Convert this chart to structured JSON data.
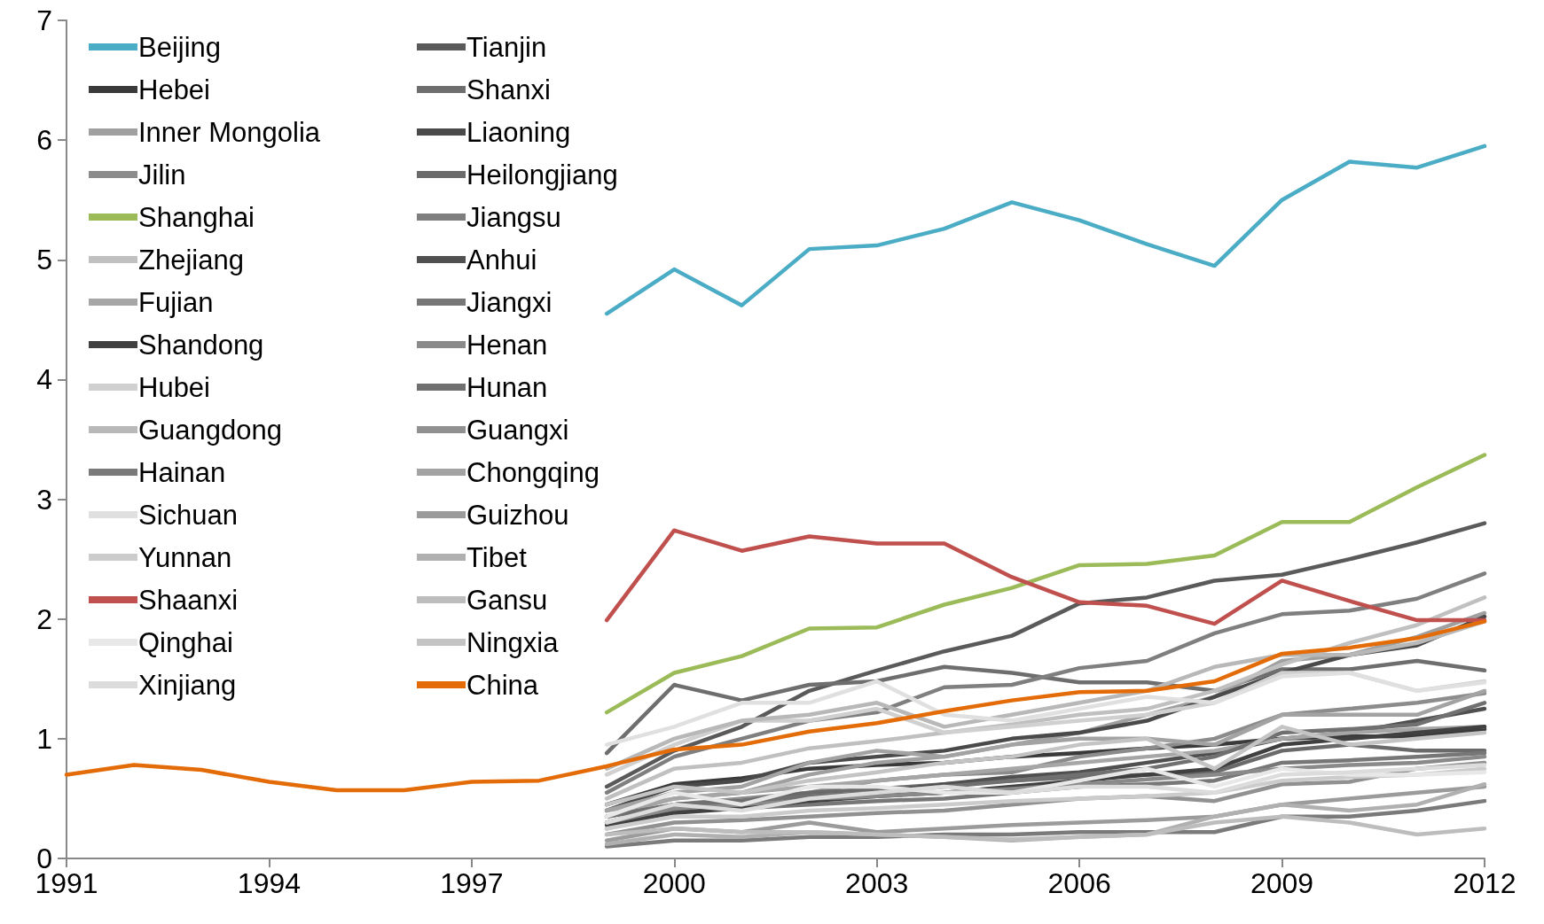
{
  "chart_data": {
    "type": "line",
    "x": [
      1991,
      1992,
      1993,
      1994,
      1995,
      1996,
      1997,
      1998,
      1999,
      2000,
      2001,
      2002,
      2003,
      2004,
      2005,
      2006,
      2007,
      2008,
      2009,
      2010,
      2011,
      2012
    ],
    "xlim": [
      1991,
      2012
    ],
    "xticks": [
      1991,
      1994,
      1997,
      2000,
      2003,
      2006,
      2009,
      2012
    ],
    "ylim": [
      0,
      7
    ],
    "yticks": [
      0,
      1,
      2,
      3,
      4,
      5,
      6,
      7
    ],
    "grid": false,
    "legend": "top left",
    "marker": "none",
    "line_style": "solid",
    "series": [
      {
        "name": "Beijing",
        "color": "#4bacc6",
        "values": [
          null,
          null,
          null,
          null,
          null,
          null,
          null,
          null,
          4.55,
          4.92,
          4.62,
          5.09,
          5.12,
          5.26,
          5.48,
          5.33,
          5.13,
          4.95,
          5.5,
          5.82,
          5.77,
          5.95
        ]
      },
      {
        "name": "Tianjin",
        "color": "#5a5a5a",
        "values": [
          null,
          null,
          null,
          null,
          null,
          null,
          null,
          null,
          0.6,
          0.9,
          1.1,
          1.4,
          1.57,
          1.73,
          1.86,
          2.13,
          2.18,
          2.32,
          2.37,
          2.5,
          2.64,
          2.8
        ]
      },
      {
        "name": "Hebei",
        "color": "#3a3a3a",
        "values": [
          null,
          null,
          null,
          null,
          null,
          null,
          null,
          null,
          0.45,
          0.62,
          0.67,
          0.75,
          0.78,
          0.8,
          0.85,
          0.88,
          0.92,
          0.95,
          1.0,
          1.02,
          1.02,
          1.08
        ]
      },
      {
        "name": "Shanxi",
        "color": "#6e6e6e",
        "values": [
          null,
          null,
          null,
          null,
          null,
          null,
          null,
          null,
          0.88,
          1.45,
          1.32,
          1.45,
          1.48,
          1.6,
          1.55,
          1.47,
          1.47,
          1.4,
          1.58,
          1.58,
          1.65,
          1.57
        ]
      },
      {
        "name": "Inner Mongolia",
        "color": "#a0a0a0",
        "values": [
          null,
          null,
          null,
          null,
          null,
          null,
          null,
          null,
          0.35,
          0.5,
          0.55,
          0.7,
          0.8,
          0.85,
          0.95,
          1.05,
          1.2,
          1.35,
          1.65,
          1.7,
          1.85,
          2.05
        ]
      },
      {
        "name": "Liaoning",
        "color": "#4a4a4a",
        "values": [
          null,
          null,
          null,
          null,
          null,
          null,
          null,
          null,
          0.4,
          0.6,
          0.65,
          0.8,
          0.85,
          0.9,
          1.0,
          1.05,
          1.15,
          1.35,
          1.55,
          1.7,
          1.78,
          2.02
        ]
      },
      {
        "name": "Jilin",
        "color": "#8c8c8c",
        "values": [
          null,
          null,
          null,
          null,
          null,
          null,
          null,
          null,
          0.3,
          0.45,
          0.5,
          0.55,
          0.65,
          0.7,
          0.72,
          0.85,
          0.92,
          1.0,
          1.2,
          1.25,
          1.3,
          1.38
        ]
      },
      {
        "name": "Heilongjiang",
        "color": "#6a6a6a",
        "values": [
          null,
          null,
          null,
          null,
          null,
          null,
          null,
          null,
          0.35,
          0.45,
          0.48,
          0.55,
          0.58,
          0.62,
          0.65,
          0.68,
          0.7,
          0.72,
          0.9,
          0.95,
          0.9,
          0.9
        ]
      },
      {
        "name": "Shanghai",
        "color": "#9bbb59",
        "values": [
          null,
          null,
          null,
          null,
          null,
          null,
          null,
          null,
          1.22,
          1.55,
          1.69,
          1.92,
          1.93,
          2.12,
          2.26,
          2.45,
          2.46,
          2.53,
          2.81,
          2.81,
          3.1,
          3.37
        ]
      },
      {
        "name": "Jiangsu",
        "color": "#7f7f7f",
        "values": [
          null,
          null,
          null,
          null,
          null,
          null,
          null,
          null,
          0.55,
          0.85,
          1.0,
          1.15,
          1.22,
          1.43,
          1.45,
          1.59,
          1.65,
          1.88,
          2.04,
          2.07,
          2.17,
          2.38
        ]
      },
      {
        "name": "Zhejiang",
        "color": "#c0c0c0",
        "values": [
          null,
          null,
          null,
          null,
          null,
          null,
          null,
          null,
          0.5,
          0.75,
          0.8,
          0.92,
          0.98,
          1.05,
          1.12,
          1.2,
          1.25,
          1.4,
          1.62,
          1.8,
          1.95,
          2.18
        ]
      },
      {
        "name": "Anhui",
        "color": "#505050",
        "values": [
          null,
          null,
          null,
          null,
          null,
          null,
          null,
          null,
          0.3,
          0.4,
          0.45,
          0.5,
          0.55,
          0.62,
          0.68,
          0.72,
          0.8,
          0.88,
          1.0,
          1.05,
          1.15,
          1.25
        ]
      },
      {
        "name": "Fujian",
        "color": "#a6a6a6",
        "values": [
          null,
          null,
          null,
          null,
          null,
          null,
          null,
          null,
          0.4,
          0.5,
          0.55,
          0.6,
          0.65,
          0.7,
          0.75,
          0.8,
          0.85,
          0.9,
          1.0,
          1.05,
          1.08,
          1.1
        ]
      },
      {
        "name": "Jiangxi",
        "color": "#777777",
        "values": [
          null,
          null,
          null,
          null,
          null,
          null,
          null,
          null,
          0.25,
          0.4,
          0.42,
          0.45,
          0.48,
          0.5,
          0.55,
          0.6,
          0.62,
          0.65,
          0.8,
          0.82,
          0.85,
          0.88
        ]
      },
      {
        "name": "Shandong",
        "color": "#404040",
        "values": [
          null,
          null,
          null,
          null,
          null,
          null,
          null,
          null,
          0.28,
          0.38,
          0.42,
          0.48,
          0.52,
          0.55,
          0.6,
          0.65,
          0.7,
          0.75,
          0.95,
          1.0,
          1.05,
          1.1
        ]
      },
      {
        "name": "Henan",
        "color": "#8a8a8a",
        "values": [
          null,
          null,
          null,
          null,
          null,
          null,
          null,
          null,
          0.3,
          0.42,
          0.45,
          0.5,
          0.52,
          0.55,
          0.58,
          0.62,
          0.66,
          0.7,
          0.75,
          0.78,
          0.8,
          0.85
        ]
      },
      {
        "name": "Hubei",
        "color": "#d0d0d0",
        "values": [
          null,
          null,
          null,
          null,
          null,
          null,
          null,
          null,
          0.7,
          0.95,
          1.15,
          1.15,
          1.25,
          1.05,
          1.1,
          1.15,
          1.2,
          1.3,
          1.55,
          1.55,
          1.4,
          1.48
        ]
      },
      {
        "name": "Hunan",
        "color": "#707070",
        "values": [
          null,
          null,
          null,
          null,
          null,
          null,
          null,
          null,
          0.35,
          0.45,
          0.48,
          0.52,
          0.55,
          0.6,
          0.65,
          0.7,
          0.75,
          0.85,
          1.05,
          1.08,
          1.12,
          1.3
        ]
      },
      {
        "name": "Guangdong",
        "color": "#b8b8b8",
        "values": [
          null,
          null,
          null,
          null,
          null,
          null,
          null,
          null,
          0.75,
          1.0,
          1.15,
          1.2,
          1.3,
          1.1,
          1.2,
          1.3,
          1.4,
          1.6,
          1.7,
          1.7,
          1.8,
          1.98
        ]
      },
      {
        "name": "Guangxi",
        "color": "#919191",
        "values": [
          null,
          null,
          null,
          null,
          null,
          null,
          null,
          null,
          0.2,
          0.3,
          0.32,
          0.35,
          0.38,
          0.4,
          0.45,
          0.5,
          0.52,
          0.48,
          0.62,
          0.64,
          0.75,
          0.8
        ]
      },
      {
        "name": "Hainan",
        "color": "#7a7a7a",
        "values": [
          null,
          null,
          null,
          null,
          null,
          null,
          null,
          null,
          0.1,
          0.15,
          0.15,
          0.18,
          0.18,
          0.2,
          0.2,
          0.22,
          0.22,
          0.22,
          0.35,
          0.35,
          0.4,
          0.48
        ]
      },
      {
        "name": "Chongqing",
        "color": "#a3a3a3",
        "values": [
          null,
          null,
          null,
          null,
          null,
          null,
          null,
          null,
          0.4,
          0.55,
          0.6,
          0.8,
          0.9,
          0.85,
          0.95,
          1.0,
          1.0,
          0.95,
          1.2,
          1.2,
          1.2,
          1.4
        ]
      },
      {
        "name": "Sichuan",
        "color": "#e0e0e0",
        "values": [
          null,
          null,
          null,
          null,
          null,
          null,
          null,
          null,
          0.95,
          1.1,
          1.3,
          1.3,
          1.48,
          1.2,
          1.15,
          1.25,
          1.35,
          1.3,
          1.52,
          1.55,
          1.4,
          1.47
        ]
      },
      {
        "name": "Guizhou",
        "color": "#9b9b9b",
        "values": [
          null,
          null,
          null,
          null,
          null,
          null,
          null,
          null,
          0.15,
          0.25,
          0.22,
          0.3,
          0.22,
          0.25,
          0.28,
          0.3,
          0.32,
          0.35,
          0.45,
          0.5,
          0.55,
          0.6
        ]
      },
      {
        "name": "Yunnan",
        "color": "#cccccc",
        "values": [
          null,
          null,
          null,
          null,
          null,
          null,
          null,
          null,
          0.25,
          0.35,
          0.35,
          0.4,
          0.42,
          0.45,
          0.48,
          0.5,
          0.52,
          0.55,
          0.65,
          0.68,
          0.7,
          0.75
        ]
      },
      {
        "name": "Tibet",
        "color": "#b0b0b0",
        "values": [
          null,
          null,
          null,
          null,
          null,
          null,
          null,
          null,
          0.12,
          0.2,
          0.18,
          0.22,
          0.2,
          0.18,
          0.15,
          0.18,
          0.2,
          0.35,
          0.45,
          0.4,
          0.45,
          0.62
        ]
      },
      {
        "name": "Shaanxi",
        "color": "#c0504d",
        "values": [
          null,
          null,
          null,
          null,
          null,
          null,
          null,
          null,
          1.99,
          2.74,
          2.57,
          2.69,
          2.63,
          2.63,
          2.35,
          2.14,
          2.11,
          1.96,
          2.32,
          2.15,
          1.99,
          1.99
        ]
      },
      {
        "name": "Gansu",
        "color": "#bdbdbd",
        "values": [
          null,
          null,
          null,
          null,
          null,
          null,
          null,
          null,
          0.2,
          0.25,
          0.22,
          0.22,
          0.2,
          0.18,
          0.16,
          0.18,
          0.2,
          0.3,
          0.35,
          0.3,
          0.2,
          0.25
        ]
      },
      {
        "name": "Qinghai",
        "color": "#e8e8e8",
        "values": [
          null,
          null,
          null,
          null,
          null,
          null,
          null,
          null,
          0.35,
          0.55,
          0.45,
          0.6,
          0.6,
          0.55,
          0.55,
          0.65,
          0.75,
          0.6,
          0.75,
          0.7,
          0.7,
          0.72
        ]
      },
      {
        "name": "Ningxia",
        "color": "#c4c4c4",
        "values": [
          null,
          null,
          null,
          null,
          null,
          null,
          null,
          null,
          0.45,
          0.6,
          0.55,
          0.65,
          0.72,
          0.8,
          0.85,
          0.95,
          1.0,
          0.75,
          1.1,
          0.95,
          1.0,
          1.05
        ]
      },
      {
        "name": "Xinjiang",
        "color": "#dcdcdc",
        "values": [
          null,
          null,
          null,
          null,
          null,
          null,
          null,
          null,
          0.3,
          0.45,
          0.4,
          0.5,
          0.55,
          0.6,
          0.55,
          0.6,
          0.6,
          0.55,
          0.7,
          0.72,
          0.75,
          0.78
        ]
      },
      {
        "name": "China",
        "color": "#e36c09",
        "values": [
          0.7,
          0.78,
          0.74,
          0.64,
          0.57,
          0.57,
          0.64,
          0.65,
          0.77,
          0.91,
          0.95,
          1.06,
          1.13,
          1.23,
          1.32,
          1.39,
          1.4,
          1.48,
          1.71,
          1.76,
          1.84,
          1.98
        ]
      }
    ]
  }
}
